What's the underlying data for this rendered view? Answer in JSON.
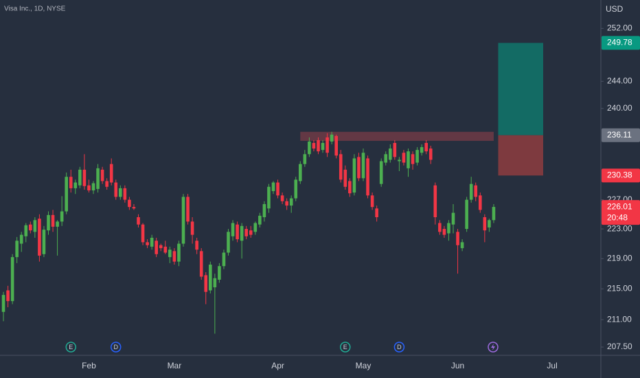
{
  "chart_data": {
    "type": "candlestick",
    "title": "Visa Inc., 1D, NYSE",
    "currency": "USD",
    "log": true,
    "up_color": "#4caf50",
    "down_color": "#f23645",
    "ylim": [
      206.46,
      256.4
    ],
    "yticks": [
      {
        "value": 252,
        "label": "252.00"
      },
      {
        "value": 244,
        "label": "244.00"
      },
      {
        "value": 240,
        "label": "240.00"
      },
      {
        "value": 227,
        "label": "227.00"
      },
      {
        "value": 223,
        "label": "223.00"
      },
      {
        "value": 219,
        "label": "219.00"
      },
      {
        "value": 215,
        "label": "215.00"
      },
      {
        "value": 211,
        "label": "211.00"
      },
      {
        "value": 207.5,
        "label": "207.50"
      }
    ],
    "categories": [
      null,
      null,
      null,
      null,
      null,
      null,
      null,
      null,
      null,
      null,
      null,
      null,
      null,
      null,
      null,
      null,
      null,
      null,
      null,
      "Feb",
      null,
      null,
      null,
      null,
      null,
      null,
      null,
      null,
      null,
      null,
      null,
      null,
      null,
      null,
      null,
      null,
      null,
      null,
      "Mar",
      null,
      null,
      null,
      null,
      null,
      null,
      null,
      null,
      null,
      null,
      null,
      null,
      null,
      null,
      null,
      null,
      null,
      null,
      null,
      null,
      null,
      null,
      "Apr",
      null,
      null,
      null,
      null,
      null,
      null,
      null,
      null,
      null,
      null,
      null,
      null,
      null,
      null,
      null,
      null,
      null,
      null,
      "May",
      null,
      null,
      null,
      null,
      null,
      null,
      null,
      null,
      null,
      null,
      null,
      null,
      null,
      null,
      null,
      null,
      null,
      null,
      null,
      null,
      "Jun",
      null,
      null,
      null,
      null,
      null,
      null,
      null,
      null,
      null,
      null,
      null,
      null,
      null,
      null,
      null,
      null,
      null,
      null,
      null,
      null,
      "Jul",
      null,
      null,
      null,
      null,
      null,
      null,
      null,
      null,
      null,
      null
    ],
    "open": [
      212.0,
      214.8,
      213.4,
      219.2,
      221.0,
      222.0,
      223.6,
      222.6,
      224.4,
      219.6,
      222.8,
      224.9,
      223.3,
      224.0,
      225.4,
      230.2,
      228.6,
      229.0,
      231.2,
      229.0,
      228.3,
      228.5,
      231.2,
      229.6,
      232.0,
      229.4,
      227.4,
      228.6,
      227.0,
      226.0,
      224.6,
      223.6,
      221.2,
      220.6,
      221.4,
      220.8,
      220.6,
      219.2,
      220.0,
      218.6,
      221.0,
      227.4,
      224.0,
      221.4,
      220.0,
      216.8,
      214.8,
      215.2,
      216.2,
      218.0,
      219.8,
      222.0,
      223.6,
      221.4,
      223.0,
      222.8,
      222.6,
      223.6,
      224.6,
      225.8,
      228.2,
      229.4,
      227.6,
      226.8,
      226.2,
      227.2,
      229.6,
      232.0,
      233.4,
      235.0,
      235.4,
      234.0,
      235.8,
      235.2,
      236.0,
      233.4,
      231.2,
      229.6,
      228.0,
      233.0,
      230.0,
      232.8,
      227.6,
      225.8,
      229.2,
      232.2,
      232.6,
      235.0,
      232.4,
      233.6,
      231.4,
      233.4,
      232.2,
      233.6,
      235.0,
      234.2,
      229.0,
      223.8,
      223.0,
      222.4,
      223.6,
      222.6,
      220.4,
      223.0,
      227.0,
      229.0,
      227.6,
      224.6,
      223.2,
      224.2,
      null,
      null,
      null,
      null,
      null,
      null,
      null,
      null,
      null,
      null,
      null,
      null,
      null,
      null,
      null,
      null,
      null,
      null,
      null,
      null,
      null,
      null,
      null
    ],
    "high": [
      214.6,
      215.4,
      219.6,
      221.9,
      222.6,
      223.8,
      224.0,
      224.6,
      225.0,
      223.4,
      225.4,
      225.6,
      224.2,
      227.5,
      230.8,
      231.2,
      229.8,
      231.6,
      233.4,
      229.8,
      229.6,
      232.0,
      231.6,
      230.0,
      232.8,
      229.8,
      229.0,
      229.0,
      227.4,
      226.4,
      225.0,
      223.8,
      221.6,
      222.2,
      221.8,
      221.0,
      221.4,
      220.6,
      220.4,
      221.4,
      227.8,
      227.8,
      224.6,
      221.8,
      220.4,
      217.2,
      218.6,
      217.0,
      218.4,
      220.2,
      223.0,
      224.2,
      224.0,
      223.8,
      223.4,
      223.4,
      224.0,
      225.2,
      226.8,
      229.2,
      229.6,
      229.8,
      228.0,
      227.2,
      227.6,
      230.2,
      232.4,
      234.0,
      235.8,
      235.4,
      235.8,
      235.4,
      236.4,
      236.6,
      236.2,
      234.0,
      231.8,
      230.0,
      233.4,
      233.6,
      234.2,
      233.2,
      228.0,
      226.2,
      232.8,
      233.8,
      234.8,
      235.4,
      233.0,
      234.0,
      234.2,
      233.8,
      234.4,
      234.8,
      235.4,
      234.6,
      229.4,
      224.2,
      223.4,
      224.2,
      226.4,
      223.0,
      221.6,
      227.4,
      230.2,
      229.4,
      228.0,
      225.0,
      224.4,
      226.4,
      null,
      null,
      null,
      null,
      null,
      null,
      null,
      null,
      null,
      null,
      null,
      null,
      null,
      null,
      null,
      null,
      null,
      null,
      null,
      null,
      null,
      null,
      null
    ],
    "low": [
      210.8,
      212.6,
      213.0,
      218.4,
      219.9,
      221.2,
      222.4,
      221.8,
      218.6,
      219.2,
      222.2,
      222.6,
      219.4,
      223.4,
      225.0,
      228.0,
      227.8,
      228.6,
      228.4,
      228.0,
      227.8,
      228.0,
      229.2,
      228.4,
      229.0,
      227.0,
      227.0,
      226.6,
      225.6,
      225.6,
      223.2,
      220.8,
      220.4,
      220.2,
      219.2,
      220.0,
      219.6,
      218.4,
      218.2,
      218.0,
      220.6,
      223.6,
      221.0,
      219.6,
      216.2,
      213.0,
      214.4,
      209.2,
      215.8,
      217.6,
      219.4,
      221.4,
      221.2,
      219.0,
      221.6,
      221.8,
      222.2,
      223.2,
      224.0,
      225.2,
      227.8,
      227.2,
      226.4,
      225.6,
      225.2,
      226.8,
      229.2,
      231.6,
      233.0,
      233.8,
      233.4,
      233.6,
      233.0,
      234.8,
      232.8,
      229.4,
      228.4,
      227.4,
      227.6,
      229.6,
      229.6,
      227.2,
      225.6,
      224.0,
      228.8,
      231.8,
      232.2,
      232.6,
      231.0,
      231.8,
      230.2,
      231.2,
      231.8,
      233.2,
      233.4,
      232.0,
      223.6,
      222.2,
      221.8,
      221.4,
      222.4,
      217.0,
      220.0,
      222.6,
      226.6,
      226.8,
      225.2,
      221.2,
      222.6,
      223.8,
      null,
      null,
      null,
      null,
      null,
      null,
      null,
      null,
      null,
      null,
      null,
      null,
      null,
      null,
      null,
      null,
      null,
      null,
      null,
      null,
      null,
      null,
      null
    ],
    "close": [
      214.2,
      213.4,
      219.2,
      221.4,
      222.2,
      223.5,
      222.8,
      224.2,
      219.4,
      222.9,
      224.9,
      223.3,
      224.0,
      225.4,
      230.2,
      228.6,
      229.4,
      231.2,
      228.9,
      228.3,
      229.3,
      231.4,
      229.6,
      228.8,
      229.4,
      227.4,
      228.6,
      227.0,
      226.0,
      225.8,
      223.6,
      221.2,
      220.8,
      221.8,
      219.6,
      220.4,
      219.8,
      220.2,
      218.6,
      221.0,
      227.4,
      224.0,
      222.2,
      220.2,
      216.6,
      214.6,
      218.2,
      216.4,
      218.0,
      219.8,
      222.6,
      223.8,
      221.6,
      223.4,
      222.0,
      222.2,
      223.8,
      224.8,
      226.4,
      228.8,
      229.4,
      227.6,
      226.8,
      226.2,
      227.2,
      229.8,
      232.0,
      233.4,
      235.2,
      234.2,
      233.8,
      235.0,
      233.6,
      236.2,
      233.2,
      229.8,
      228.8,
      227.9,
      232.8,
      230.0,
      233.6,
      227.6,
      226.0,
      224.6,
      232.4,
      233.4,
      234.2,
      233.0,
      232.6,
      232.2,
      233.8,
      232.0,
      234.0,
      234.4,
      233.8,
      232.6,
      224.6,
      222.6,
      222.2,
      223.8,
      225.2,
      220.8,
      221.2,
      227.0,
      229.2,
      227.4,
      225.6,
      222.8,
      224.2,
      226.01,
      null,
      null,
      null,
      null,
      null,
      null,
      null,
      null,
      null,
      null,
      null,
      null,
      null,
      null,
      null,
      null,
      null,
      null,
      null,
      null,
      null,
      null,
      null
    ],
    "events": [
      null,
      null,
      null,
      null,
      null,
      null,
      null,
      null,
      null,
      null,
      null,
      null,
      null,
      null,
      null,
      "E",
      null,
      null,
      null,
      null,
      null,
      null,
      null,
      null,
      null,
      "D",
      null,
      null,
      null,
      null,
      null,
      null,
      null,
      null,
      null,
      null,
      null,
      null,
      null,
      null,
      null,
      null,
      null,
      null,
      null,
      null,
      null,
      null,
      null,
      null,
      null,
      null,
      null,
      null,
      null,
      null,
      null,
      null,
      null,
      null,
      null,
      null,
      null,
      null,
      null,
      null,
      null,
      null,
      null,
      null,
      null,
      null,
      null,
      null,
      null,
      null,
      "E",
      null,
      null,
      null,
      null,
      null,
      null,
      null,
      null,
      null,
      null,
      null,
      "D",
      null,
      null,
      null,
      null,
      null,
      null,
      null,
      null,
      null,
      null,
      null,
      null,
      null,
      null,
      null,
      null,
      null,
      null,
      null,
      null,
      null,
      null,
      null,
      null,
      null,
      null,
      null,
      null,
      null,
      null,
      null,
      null,
      null,
      null,
      null,
      null,
      null,
      null,
      null,
      null,
      null,
      null,
      null,
      null,
      null,
      null,
      null,
      null
    ],
    "zone": {
      "top": 236.6,
      "bottom": 235.3,
      "color": "#6e3a45"
    },
    "position": {
      "target": 249.78,
      "entry": 236.11,
      "stop": 230.38,
      "profit_color": "#136b64",
      "loss_color": "#7e3a3f"
    },
    "price_labels": [
      {
        "value": 249.78,
        "color": "#089981"
      },
      {
        "value": 236.11,
        "color": "#6b7280"
      },
      {
        "value": 230.38,
        "color": "#f23645"
      },
      {
        "value": 226.01,
        "color": "#f23645",
        "countdown": "20:48"
      }
    ]
  }
}
